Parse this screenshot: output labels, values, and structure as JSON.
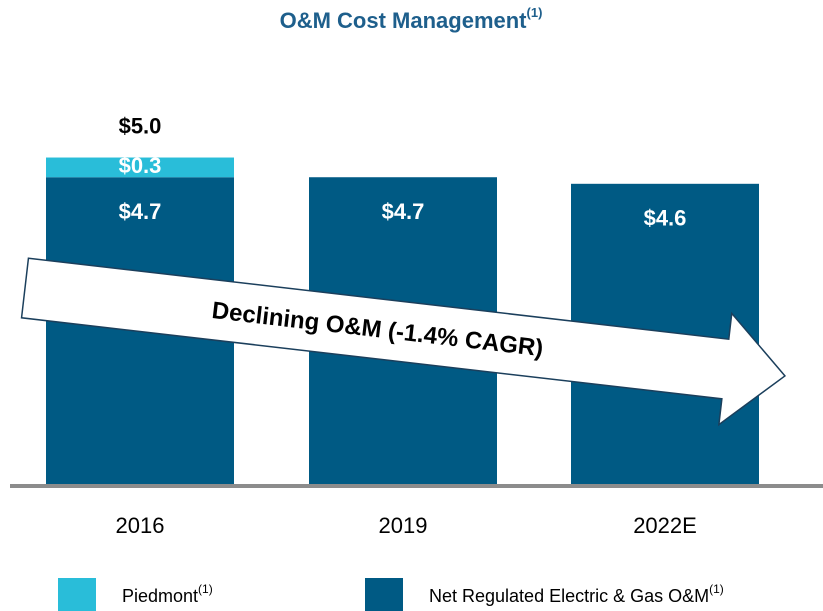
{
  "chart_data": {
    "type": "stacked_bar",
    "title": "O&M Cost Management",
    "title_note": "(1)",
    "categories": [
      "2016",
      "2019",
      "2022E"
    ],
    "series": [
      {
        "name": "Net Regulated Electric & Gas O&M",
        "name_note": "(1)",
        "color": "#005a84",
        "values": [
          4.7,
          4.7,
          4.6
        ],
        "value_labels": [
          "$4.7",
          "$4.7",
          "$4.6"
        ]
      },
      {
        "name": "Piedmont",
        "name_note": "(1)",
        "color": "#29bdd9",
        "values": [
          0.3,
          null,
          null
        ],
        "value_labels": [
          "$0.3",
          null,
          null
        ]
      }
    ],
    "totals": [
      5.0,
      null,
      null
    ],
    "total_labels": [
      "$5.0",
      null,
      null
    ],
    "annotation": "Declining O&M (-1.4% CAGR)",
    "ylim": [
      0,
      7.2
    ],
    "legend": "bottom"
  }
}
